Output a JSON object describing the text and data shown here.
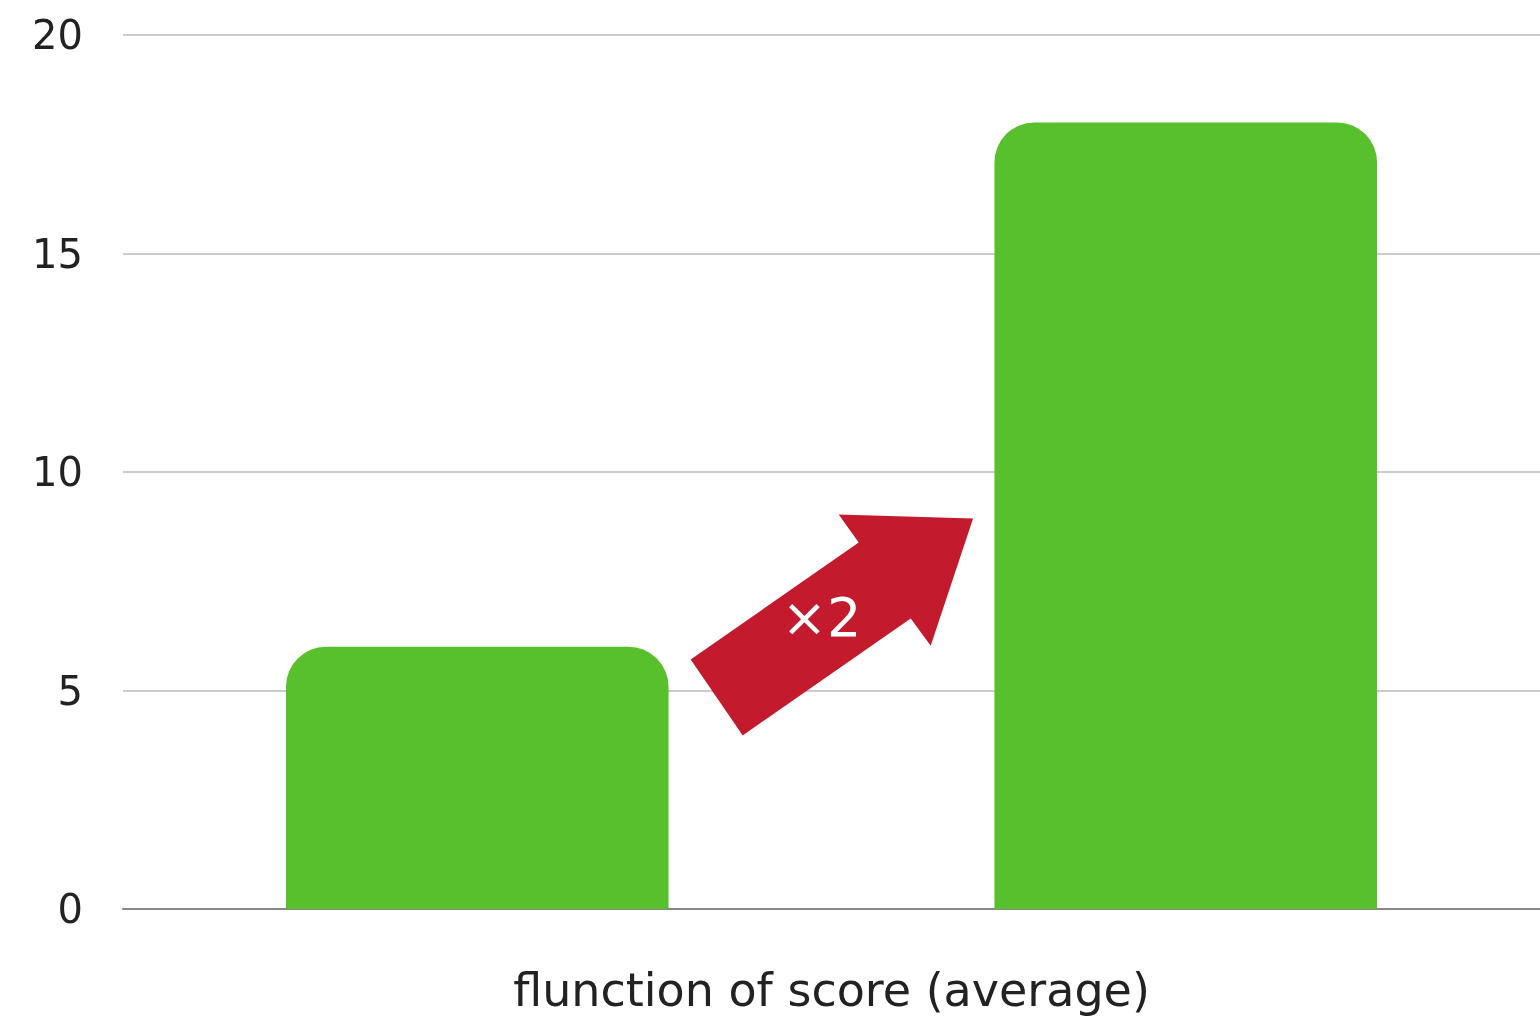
{
  "chart_data": {
    "type": "bar",
    "xlabel": "flunction of score (average)",
    "categories": [
      null,
      null
    ],
    "values": [
      6,
      18
    ],
    "color": "#58bf2d",
    "ylim": [
      0,
      20
    ],
    "yticks": [
      0,
      5,
      10,
      15,
      20
    ],
    "grid": "y",
    "annotations": [
      "×2"
    ]
  }
}
